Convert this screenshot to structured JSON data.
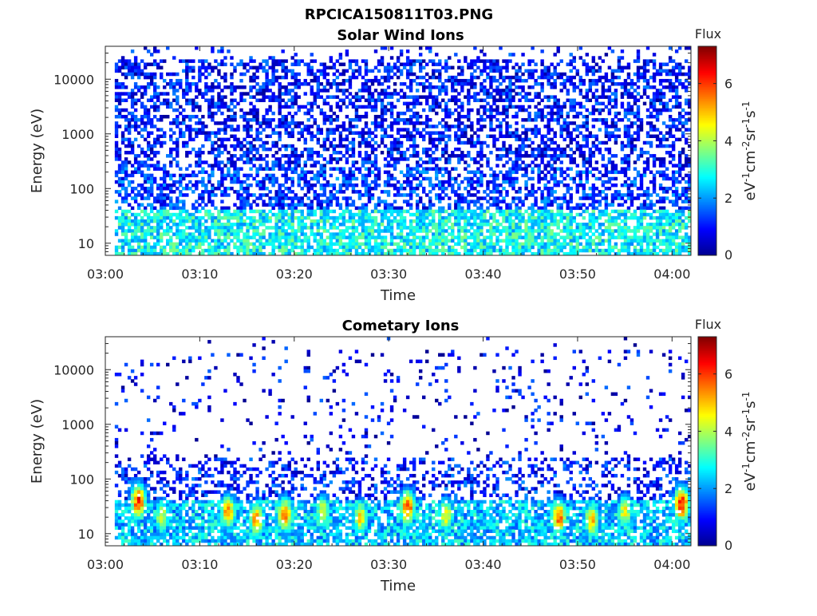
{
  "figure_title": "RPCICA150811T03.PNG",
  "colors": {
    "jet": [
      "#00008f",
      "#0000ff",
      "#0080ff",
      "#00ffff",
      "#80ff80",
      "#ffff00",
      "#ff8000",
      "#ff0000",
      "#800000"
    ],
    "axis": "#262626"
  },
  "chart_data": [
    {
      "type": "heatmap",
      "title": "Solar Wind Ions",
      "xlabel": "Time",
      "ylabel": "Energy (eV)",
      "x_ticks": [
        "03:00",
        "03:10",
        "03:20",
        "03:30",
        "03:40",
        "03:50",
        "04:00"
      ],
      "x_range": [
        "03:00",
        "04:02"
      ],
      "y_scale": "log",
      "y_range": [
        6,
        40000
      ],
      "y_ticks": [
        10,
        100,
        1000,
        10000
      ],
      "y_tick_labels": [
        "10",
        "100",
        "1000",
        "10000"
      ],
      "colorbar": {
        "title": "Flux",
        "label_parts": [
          "eV",
          "-1",
          "cm",
          "-2",
          "sr",
          "-1",
          "s",
          "-1"
        ],
        "range": [
          0,
          7.3
        ],
        "ticks": [
          0,
          2,
          4,
          6
        ],
        "tick_labels": [
          "0",
          "2",
          "4",
          "6"
        ],
        "colormap": "jet"
      },
      "data_start": "03:01",
      "profile": {
        "description": "broad low-level flux across all energies",
        "high_energy_level": 0.8,
        "mid_energy_level": 1.1,
        "low_energy_level": 2.6,
        "hotspots": []
      }
    },
    {
      "type": "heatmap",
      "title": "Cometary Ions",
      "xlabel": "Time",
      "ylabel": "Energy (eV)",
      "x_ticks": [
        "03:00",
        "03:10",
        "03:20",
        "03:30",
        "03:40",
        "03:50",
        "04:00"
      ],
      "x_range": [
        "03:00",
        "04:02"
      ],
      "y_scale": "log",
      "y_range": [
        6,
        40000
      ],
      "y_ticks": [
        10,
        100,
        1000,
        10000
      ],
      "y_tick_labels": [
        "10",
        "100",
        "1000",
        "10000"
      ],
      "colorbar": {
        "title": "Flux",
        "label_parts": [
          "eV",
          "-1",
          "cm",
          "-2",
          "sr",
          "-1",
          "s",
          "-1"
        ],
        "range": [
          0,
          7.3
        ],
        "ticks": [
          0,
          2,
          4,
          6
        ],
        "tick_labels": [
          "0",
          "2",
          "4",
          "6"
        ],
        "colormap": "jet"
      },
      "data_start": "03:01",
      "profile": {
        "description": "sparse high-energy flux, intense bursts below ~100 eV",
        "high_energy_level": 0.6,
        "mid_energy_level": 0.9,
        "low_energy_level": 2.2,
        "hotspots": [
          {
            "time": "03:03.5",
            "energy": 40,
            "flux": 6.3
          },
          {
            "time": "03:06",
            "energy": 20,
            "flux": 4.5
          },
          {
            "time": "03:13",
            "energy": 25,
            "flux": 5.5
          },
          {
            "time": "03:16",
            "energy": 18,
            "flux": 5.5
          },
          {
            "time": "03:19",
            "energy": 22,
            "flux": 5.8
          },
          {
            "time": "03:23",
            "energy": 25,
            "flux": 4.5
          },
          {
            "time": "03:27",
            "energy": 20,
            "flux": 4.8
          },
          {
            "time": "03:32",
            "energy": 30,
            "flux": 6.3
          },
          {
            "time": "03:36",
            "energy": 22,
            "flux": 4.8
          },
          {
            "time": "03:48",
            "energy": 20,
            "flux": 6.0
          },
          {
            "time": "03:51.5",
            "energy": 18,
            "flux": 5.2
          },
          {
            "time": "03:55",
            "energy": 25,
            "flux": 4.6
          },
          {
            "time": "04:01",
            "energy": 35,
            "flux": 6.6
          }
        ]
      }
    }
  ]
}
